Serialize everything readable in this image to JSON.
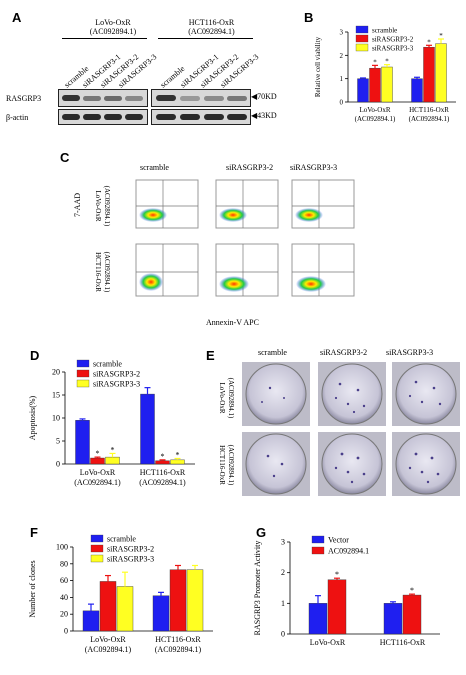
{
  "panels": {
    "a": "A",
    "b": "B",
    "c": "C",
    "d": "D",
    "e": "E",
    "f": "F",
    "g": "G"
  },
  "blot": {
    "group1": "LoVo-OxR",
    "group1_sub": "(AC092894.1)",
    "group2": "HCT116-OxR",
    "group2_sub": "(AC092894.1)",
    "lanes": [
      "scramble",
      "siRASGRP3-1",
      "siRASGRP3-2",
      "siRASGRP3-3"
    ],
    "row1": "RASGRP3",
    "row2": "β-actin",
    "kd1": "70KD",
    "kd2": "43KD",
    "arrow": "◀"
  },
  "flow": {
    "cols": [
      "scramble",
      "siRASGRP3-2",
      "siRASGRP3-3"
    ],
    "rows": [
      "LoVo-OxR",
      "HCT116-OxR"
    ],
    "rows_sub": "(AC092894.1)",
    "ylabel": "7-AAD",
    "xlabel": "Annexin-V APC"
  },
  "colony": {
    "cols": [
      "scramble",
      "siRASGRP3-2",
      "siRASGRP3-3"
    ],
    "rows": [
      "LoVo-OxR",
      "HCT116-OxR"
    ],
    "rows_sub": "(AC092894.1)"
  },
  "colors": {
    "blue": "#1f1ff0",
    "red": "#ee1111",
    "yellow": "#ffff22",
    "bar_outline": "#333333"
  },
  "chart_data": [
    {
      "id": "B",
      "type": "bar",
      "categories": [
        "LoVo-OxR\n(AC092894.1)",
        "HCT116-OxR\n(AC092894.1)"
      ],
      "series": [
        {
          "name": "scramble",
          "values": [
            1.0,
            1.0
          ],
          "err": [
            0.03,
            0.06
          ]
        },
        {
          "name": "siRASGRP3-2",
          "values": [
            1.45,
            2.35
          ],
          "err": [
            0.12,
            0.08
          ]
        },
        {
          "name": "siRASGRP3-3",
          "values": [
            1.5,
            2.5
          ],
          "err": [
            0.1,
            0.2
          ]
        }
      ],
      "ylabel": "Relative cell viability",
      "ylim": [
        0,
        3
      ],
      "yticks": [
        0,
        1,
        2,
        3
      ],
      "legend": "top-left",
      "annotations": [
        "*",
        "*",
        "*",
        "*"
      ]
    },
    {
      "id": "D",
      "type": "bar",
      "categories": [
        "LoVo-OxR\n(AC092894.1)",
        "HCT116-OxR\n(AC092894.1)"
      ],
      "series": [
        {
          "name": "scramble",
          "values": [
            9.5,
            15.2
          ],
          "err": [
            0.3,
            1.4
          ]
        },
        {
          "name": "siRASGRP3-2",
          "values": [
            1.3,
            0.7
          ],
          "err": [
            0.2,
            0.2
          ]
        },
        {
          "name": "siRASGRP3-3",
          "values": [
            1.5,
            0.9
          ],
          "err": [
            0.8,
            0.3
          ]
        }
      ],
      "ylabel": "Apoptosis(%)",
      "ylim": [
        0,
        20
      ],
      "yticks": [
        0,
        5,
        10,
        15,
        20
      ],
      "legend": "top-left",
      "annotations": [
        "*",
        "*",
        "*",
        "*"
      ]
    },
    {
      "id": "F",
      "type": "bar",
      "categories": [
        "LoVo-OxR\n(AC092894.1)",
        "HCT116-OxR\n(AC092894.1)"
      ],
      "series": [
        {
          "name": "scramble",
          "values": [
            24,
            42
          ],
          "err": [
            8,
            4
          ]
        },
        {
          "name": "siRASGRP3-2",
          "values": [
            59,
            73
          ],
          "err": [
            7,
            5
          ]
        },
        {
          "name": "siRASGRP3-3",
          "values": [
            53,
            73
          ],
          "err": [
            17,
            5
          ]
        }
      ],
      "ylabel": "Number of clones",
      "ylim": [
        0,
        100
      ],
      "yticks": [
        0,
        20,
        40,
        60,
        80,
        100
      ],
      "legend": "top-left"
    },
    {
      "id": "G",
      "type": "bar",
      "categories": [
        "LoVo-OxR",
        "HCT116-OxR"
      ],
      "series": [
        {
          "name": "Vector",
          "values": [
            1.0,
            1.0
          ],
          "err": [
            0.25,
            0.05
          ]
        },
        {
          "name": "AC092894.1",
          "values": [
            1.77,
            1.27
          ],
          "err": [
            0.05,
            0.03
          ]
        }
      ],
      "ylabel": "RASGRP3 Promoter Activity",
      "ylim": [
        0,
        3
      ],
      "yticks": [
        0,
        1,
        2,
        3
      ],
      "legend": "top-left",
      "annotations": [
        "*",
        "*"
      ]
    }
  ]
}
